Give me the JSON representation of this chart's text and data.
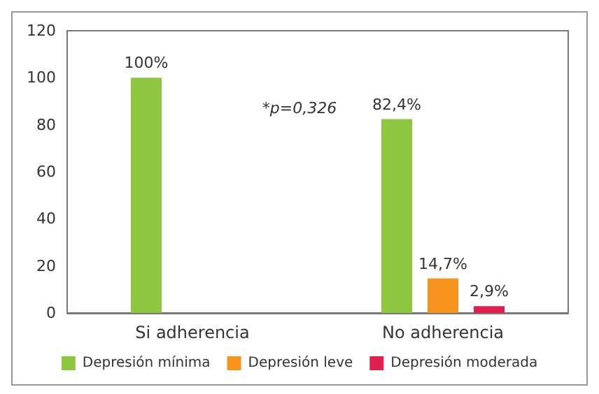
{
  "chart_data": {
    "type": "bar",
    "categories": [
      "Si adherencia",
      "No adherencia"
    ],
    "series": [
      {
        "name": "Depresión mínima",
        "color": "#8dc63f",
        "values": [
          100,
          82.4
        ],
        "value_labels": [
          "100%",
          "82,4%"
        ]
      },
      {
        "name": "Depresión leve",
        "color": "#f7941d",
        "values": [
          null,
          14.7
        ],
        "value_labels": [
          null,
          "14,7%"
        ]
      },
      {
        "name": "Depresión moderada",
        "color": "#e2204f",
        "values": [
          null,
          2.9
        ],
        "value_labels": [
          null,
          "2,9%"
        ]
      }
    ],
    "ylim": [
      0,
      120
    ],
    "yticks": [
      0,
      20,
      40,
      60,
      80,
      100,
      120
    ],
    "annotations": [
      "*p=0,326"
    ],
    "grid": false,
    "legend": "bottom"
  }
}
